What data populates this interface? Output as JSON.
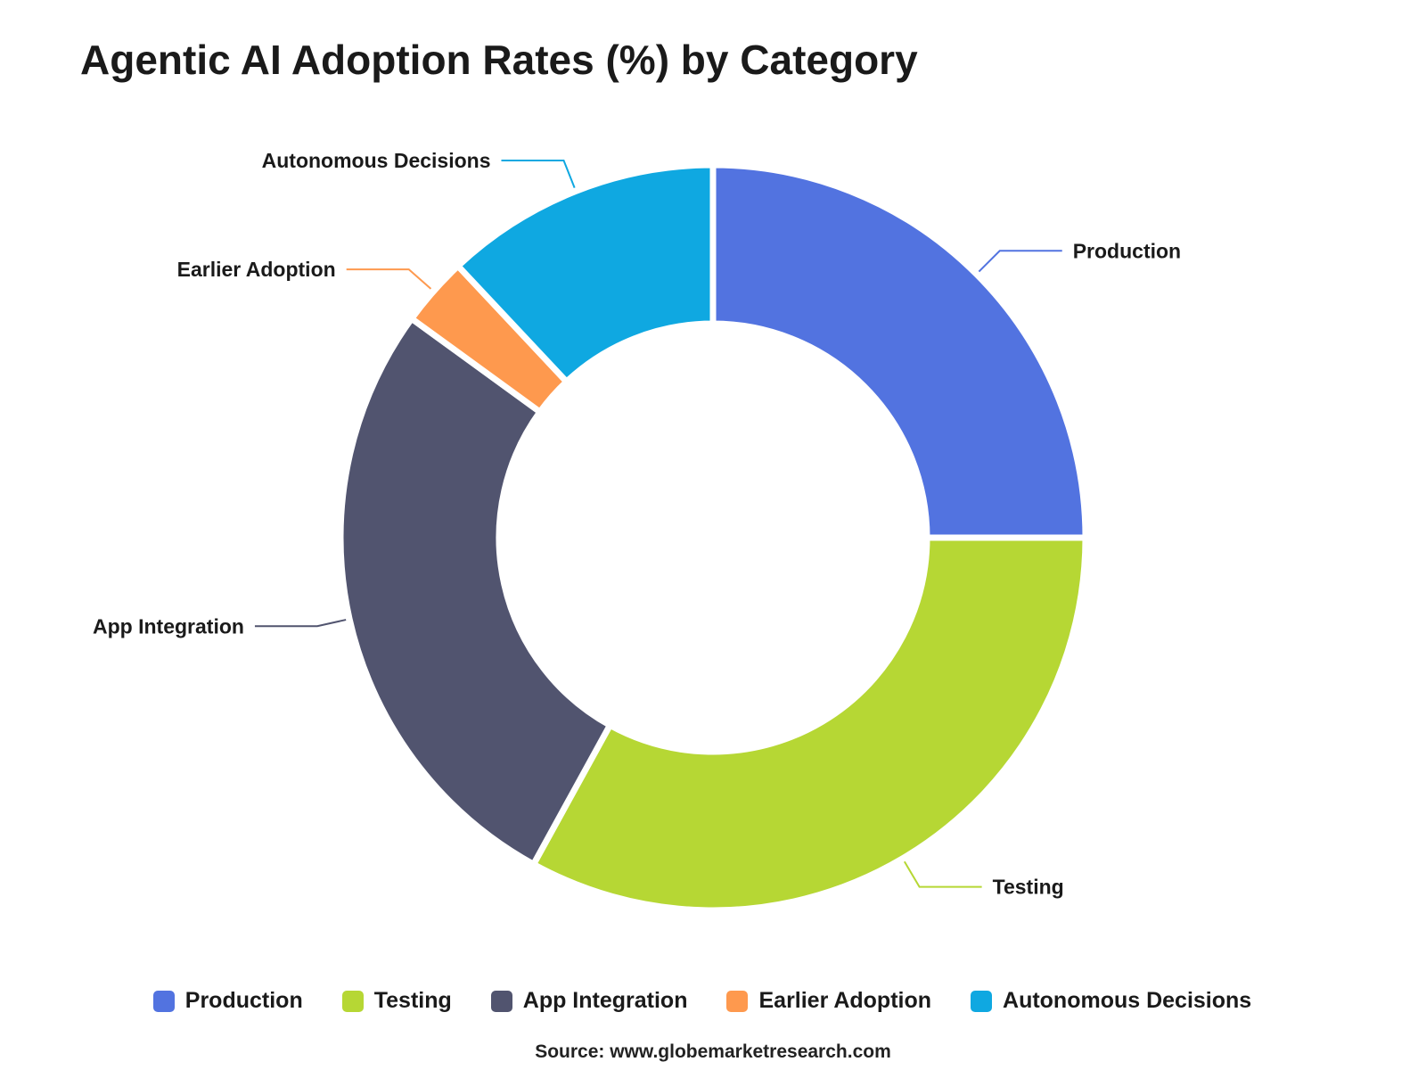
{
  "chart_data": {
    "type": "pie",
    "variant": "donut",
    "title": "Agentic AI Adoption Rates (%) by Category",
    "categories": [
      "Production",
      "Testing",
      "App Integration",
      "Earlier Adoption",
      "Autonomous Decisions"
    ],
    "values": [
      25,
      33,
      27,
      3,
      12
    ],
    "colors": [
      "#5273e0",
      "#b6d734",
      "#51546f",
      "#fe994e",
      "#0fa8e1"
    ],
    "legend_position": "bottom",
    "source": "Source: www.globemarketresearch.com"
  }
}
